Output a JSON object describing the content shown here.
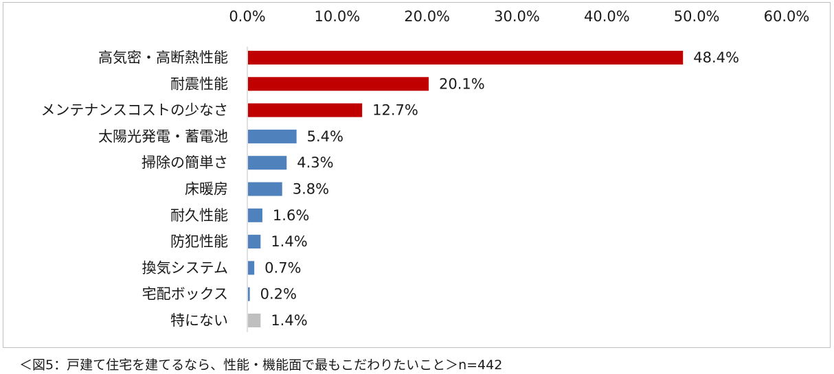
{
  "chart_data": {
    "type": "bar",
    "orientation": "horizontal",
    "title": "",
    "xlabel": "",
    "ylabel": "",
    "xlim": [
      0,
      60
    ],
    "x_ticks": [
      "0.0%",
      "10.0%",
      "20.0%",
      "30.0%",
      "40.0%",
      "50.0%",
      "60.0%"
    ],
    "x_axis_position": "top",
    "grid": false,
    "legend": "none",
    "categories": [
      "高気密・高断熱性能",
      "耐震性能",
      "メンテナンスコストの少なさ",
      "太陽光発電・蓄電池",
      "掃除の簡単さ",
      "床暖房",
      "耐久性能",
      "防犯性能",
      "換気システム",
      "宅配ボックス",
      "特にない"
    ],
    "values": [
      48.4,
      20.1,
      12.7,
      5.4,
      4.3,
      3.8,
      1.6,
      1.4,
      0.7,
      0.2,
      1.4
    ],
    "data_labels": [
      "48.4%",
      "20.1%",
      "12.7%",
      "5.4%",
      "4.3%",
      "3.8%",
      "1.6%",
      "1.4%",
      "0.7%",
      "0.2%",
      "1.4%"
    ],
    "colors": [
      "#c00000",
      "#c00000",
      "#c00000",
      "#4f81bd",
      "#4f81bd",
      "#4f81bd",
      "#4f81bd",
      "#4f81bd",
      "#4f81bd",
      "#4f81bd",
      "#bfbfbf"
    ]
  },
  "caption": "＜図5：戸建て住宅を建てるなら、性能・機能面で最もこだわりたいこと＞n=442"
}
